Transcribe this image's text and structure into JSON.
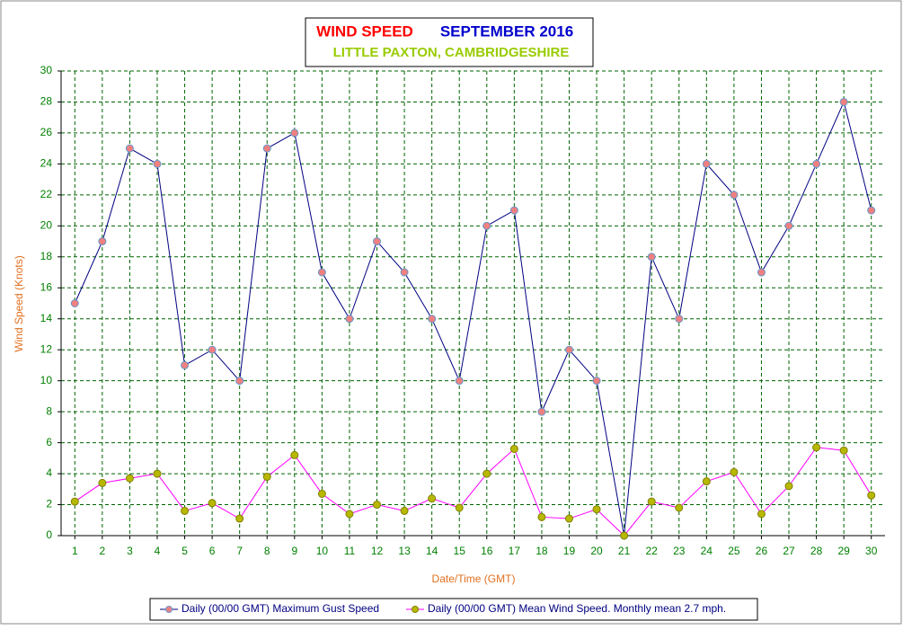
{
  "chart_data": {
    "type": "line",
    "title": "WIND SPEED",
    "title_month": "SEPTEMBER 2016",
    "subtitle": "LITTLE PAXTON, CAMBRIDGESHIRE",
    "y_label": "Wind Speed (Knots)",
    "x_label": "Date/Time (GMT)",
    "categories": [
      "1",
      "2",
      "3",
      "4",
      "5",
      "6",
      "7",
      "8",
      "9",
      "10",
      "11",
      "12",
      "13",
      "14",
      "15",
      "16",
      "17",
      "18",
      "19",
      "20",
      "21",
      "22",
      "23",
      "24",
      "25",
      "26",
      "27",
      "28",
      "29",
      "30"
    ],
    "series": [
      {
        "name": "Daily (00/00 GMT) Maximum Gust Speed",
        "color": "#000080",
        "marker_color": "#f08080",
        "values": [
          15,
          19,
          25,
          24,
          11,
          12,
          10,
          25,
          26,
          17,
          14,
          19,
          17,
          14,
          10,
          20,
          21,
          8,
          12,
          10,
          0,
          18,
          14,
          24,
          22,
          17,
          20,
          24,
          28,
          21
        ]
      },
      {
        "name": "Daily (00/00 GMT) Mean Wind Speed. Monthly mean 2.7 mph.",
        "color": "#ff00ff",
        "marker_color": "#b8b800",
        "values": [
          2.2,
          3.4,
          3.7,
          4.0,
          1.6,
          2.1,
          1.1,
          3.8,
          5.2,
          2.7,
          1.4,
          2.0,
          1.6,
          2.4,
          1.8,
          4.0,
          5.6,
          1.2,
          1.1,
          1.7,
          0,
          2.2,
          1.8,
          3.5,
          4.1,
          1.4,
          3.2,
          5.7,
          5.5,
          2.6
        ]
      }
    ],
    "ylim": [
      0,
      30
    ],
    "yticks": [
      0,
      2,
      4,
      6,
      8,
      10,
      12,
      14,
      16,
      18,
      20,
      22,
      24,
      26,
      28,
      30
    ],
    "grid": true
  }
}
